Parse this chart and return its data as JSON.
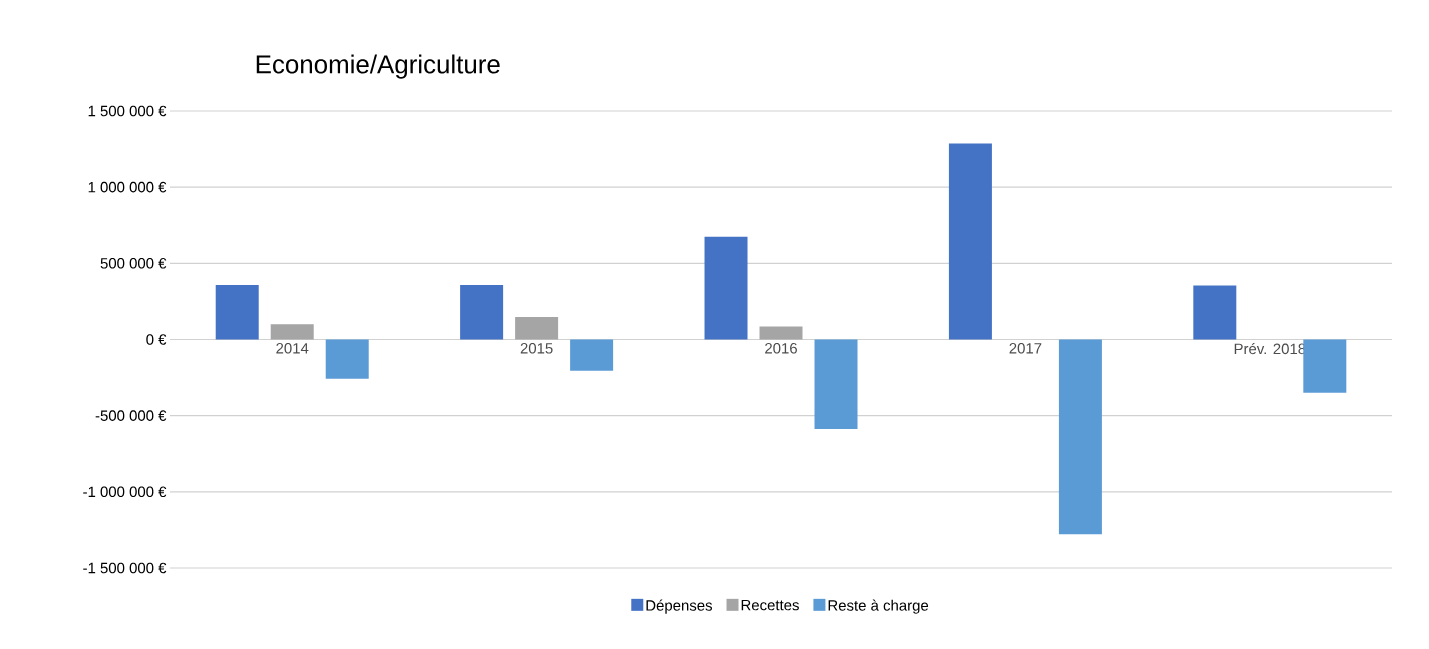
{
  "chart_data": {
    "type": "bar",
    "title": "Economie/Agriculture",
    "categories": [
      "2014",
      "2015",
      "2016",
      "2017",
      "Prév. 2018"
    ],
    "series": [
      {
        "name": "Dépenses",
        "color": "#4472c4",
        "values": [
          358000,
          358000,
          674000,
          1287000,
          354000
        ]
      },
      {
        "name": "Recettes",
        "color": "#a5a5a5",
        "values": [
          100000,
          147000,
          85000,
          null,
          0
        ]
      },
      {
        "name": "Reste à charge",
        "color": "#5b9bd5",
        "values": [
          -258000,
          -205000,
          -588000,
          -1279000,
          -349000
        ]
      }
    ],
    "ylim": [
      -1500000,
      1500000
    ],
    "yticks": [
      {
        "value": -1500000,
        "label": "-1 500 000 €"
      },
      {
        "value": -1000000,
        "label": "-1 000 000 €"
      },
      {
        "value": -500000,
        "label": "-500 000 €"
      },
      {
        "value": 0,
        "label": "0 €"
      },
      {
        "value": 500000,
        "label": "500 000 €"
      },
      {
        "value": 1000000,
        "label": "1 000 000 €"
      },
      {
        "value": 1500000,
        "label": "1 500 000 €"
      }
    ],
    "grid": "y",
    "legend": "bottom"
  }
}
